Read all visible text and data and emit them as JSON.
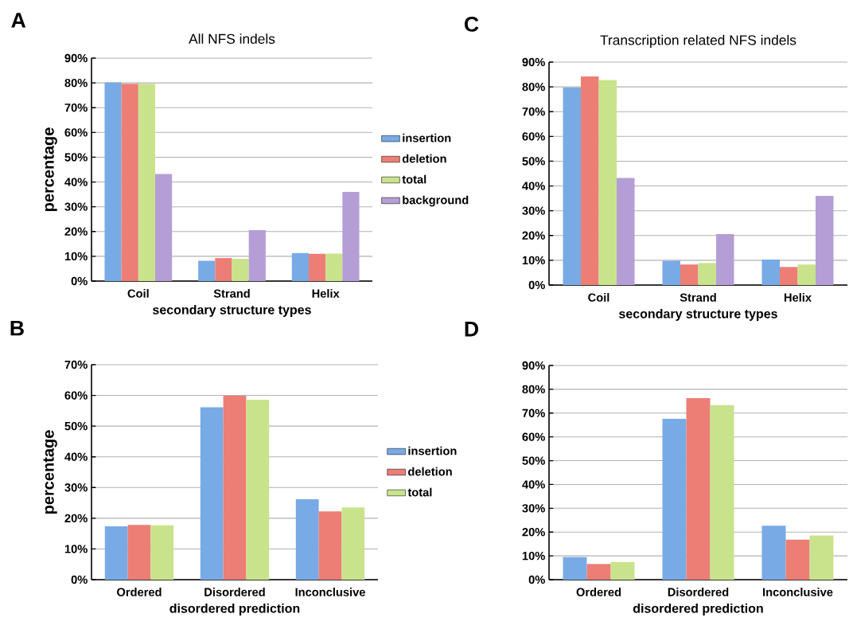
{
  "chart_data": [
    {
      "type": "bar",
      "title": "All NFS indels",
      "xlabel": "secondary structure types",
      "ylabel": "percentage",
      "annotations": [
        "A"
      ],
      "categories": [
        "Coil",
        "Strand",
        "Helix"
      ],
      "series": [
        {
          "name": "insertion",
          "color": "#78aae6",
          "values": [
            80.2,
            8.2,
            11.3
          ]
        },
        {
          "name": "deletion",
          "color": "#ec7e76",
          "values": [
            79.6,
            9.3,
            11.0
          ]
        },
        {
          "name": "total",
          "color": "#c9e38c",
          "values": [
            79.6,
            9.0,
            11.1
          ]
        },
        {
          "name": "background",
          "color": "#b59ed6",
          "values": [
            43.2,
            20.6,
            36.0
          ]
        }
      ],
      "ylim": [
        0,
        90
      ],
      "yticks": [
        {
          "value": 0,
          "label": "0%"
        },
        {
          "value": 10,
          "label": "10%"
        },
        {
          "value": 20,
          "label": "20%"
        },
        {
          "value": 30,
          "label": "30%"
        },
        {
          "value": 40,
          "label": "40%"
        },
        {
          "value": 50,
          "label": "50%"
        },
        {
          "value": 60,
          "label": "60%"
        },
        {
          "value": 70,
          "label": "70%"
        },
        {
          "value": 80,
          "label": "80%"
        },
        {
          "value": 90,
          "label": "90%"
        }
      ],
      "grid": "y",
      "legend": "right"
    },
    {
      "type": "bar",
      "title": "Transcription related NFS indels",
      "xlabel": "secondary structure types",
      "annotations": [
        "C"
      ],
      "categories": [
        "Coil",
        "Strand",
        "Helix"
      ],
      "series": [
        {
          "color": "#78aae6",
          "values": [
            79.7,
            9.8,
            10.3
          ]
        },
        {
          "color": "#ec7e76",
          "values": [
            84.2,
            8.3,
            7.3
          ]
        },
        {
          "color": "#c9e38c",
          "values": [
            82.8,
            8.9,
            8.3
          ]
        },
        {
          "color": "#b59ed6",
          "values": [
            43.2,
            20.6,
            36.0
          ]
        }
      ],
      "ylim": [
        0,
        90
      ],
      "yticks": [
        {
          "value": 0,
          "label": "0%"
        },
        {
          "value": 10,
          "label": "10%"
        },
        {
          "value": 20,
          "label": "20%"
        },
        {
          "value": 30,
          "label": "30%"
        },
        {
          "value": 40,
          "label": "40%"
        },
        {
          "value": 50,
          "label": "50%"
        },
        {
          "value": 60,
          "label": "60%"
        },
        {
          "value": 70,
          "label": "70%"
        },
        {
          "value": 80,
          "label": "80%"
        },
        {
          "value": 90,
          "label": "90%"
        }
      ],
      "grid": "y"
    },
    {
      "type": "bar",
      "xlabel": "disordered prediction",
      "ylabel": "percentage",
      "annotations": [
        "B"
      ],
      "categories": [
        "Ordered",
        "Disordered",
        "Inconclusive"
      ],
      "series": [
        {
          "name": "insertion",
          "color": "#78aae6",
          "values": [
            17.4,
            56.1,
            26.2
          ]
        },
        {
          "name": "deletion",
          "color": "#ec7e76",
          "values": [
            17.8,
            59.9,
            22.2
          ]
        },
        {
          "name": "total",
          "color": "#c9e38c",
          "values": [
            17.7,
            58.6,
            23.5
          ]
        }
      ],
      "ylim": [
        0,
        70
      ],
      "yticks": [
        {
          "value": 0,
          "label": "0%"
        },
        {
          "value": 10,
          "label": "10%"
        },
        {
          "value": 20,
          "label": "20%"
        },
        {
          "value": 30,
          "label": "30%"
        },
        {
          "value": 40,
          "label": "40%"
        },
        {
          "value": 50,
          "label": "50%"
        },
        {
          "value": 60,
          "label": "60%"
        },
        {
          "value": 70,
          "label": "70%"
        }
      ],
      "grid": "y",
      "legend": "right"
    },
    {
      "type": "bar",
      "xlabel": "disordered prediction",
      "annotations": [
        "D"
      ],
      "categories": [
        "Ordered",
        "Disordered",
        "Inconclusive"
      ],
      "series": [
        {
          "color": "#78aae6",
          "values": [
            9.5,
            67.6,
            22.7
          ]
        },
        {
          "color": "#ec7e76",
          "values": [
            6.6,
            76.3,
            16.8
          ]
        },
        {
          "color": "#c9e38c",
          "values": [
            7.4,
            73.4,
            18.6
          ]
        }
      ],
      "ylim": [
        0,
        90
      ],
      "yticks": [
        {
          "value": 0,
          "label": "0%"
        },
        {
          "value": 10,
          "label": "10%"
        },
        {
          "value": 20,
          "label": "20%"
        },
        {
          "value": 30,
          "label": "30%"
        },
        {
          "value": 40,
          "label": "40%"
        },
        {
          "value": 50,
          "label": "50%"
        },
        {
          "value": 60,
          "label": "60%"
        },
        {
          "value": 70,
          "label": "70%"
        },
        {
          "value": 80,
          "label": "80%"
        },
        {
          "value": 90,
          "label": "90%"
        }
      ],
      "grid": "y"
    }
  ]
}
